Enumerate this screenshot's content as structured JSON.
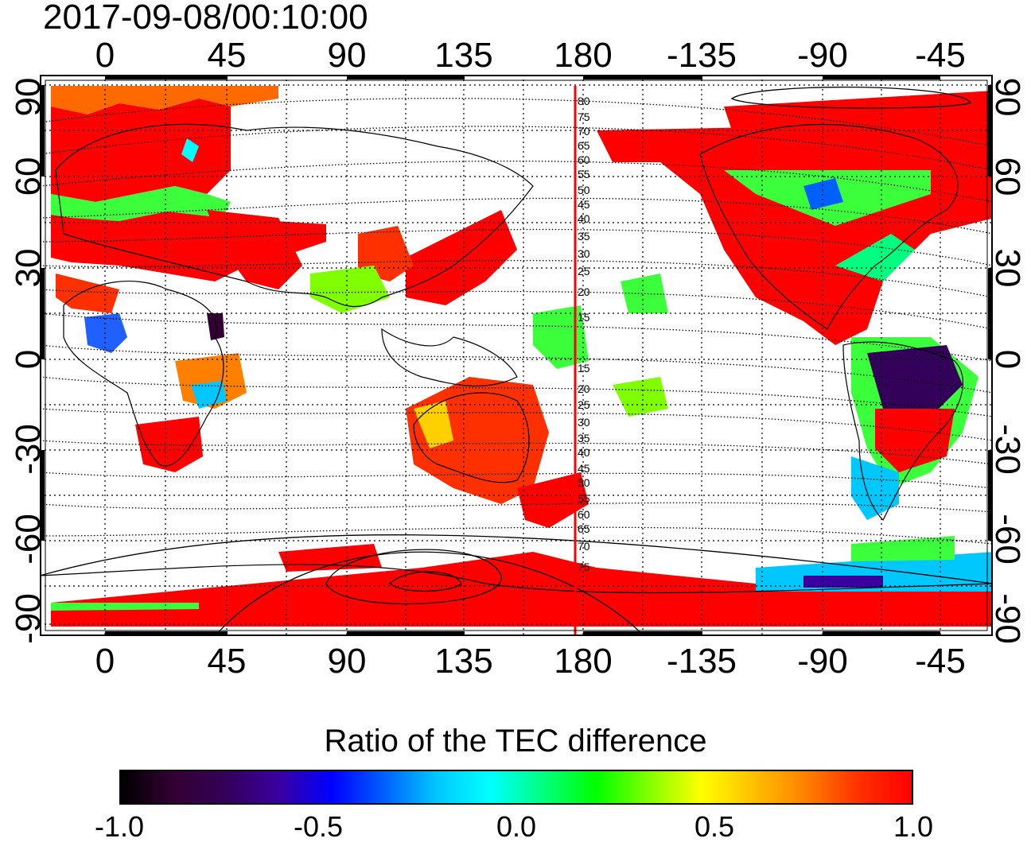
{
  "timestamp": "2017-09-08/00:10:00",
  "lon_ticks": [
    "0",
    "45",
    "90",
    "135",
    "180",
    "-135",
    "-90",
    "-45"
  ],
  "lat_ticks_left": [
    "90",
    "60",
    "30",
    "0",
    "-30",
    "-60",
    "-90"
  ],
  "lat_ticks_right": [
    "90",
    "60",
    "30",
    "0",
    "-30",
    "-60",
    "-90"
  ],
  "magnetic_lat_labels": [
    "80",
    "75",
    "70",
    "65",
    "60",
    "55",
    "50",
    "45",
    "40",
    "35",
    "30",
    "25",
    "20",
    "15",
    "15",
    "20",
    "25",
    "30",
    "35",
    "40",
    "45",
    "50",
    "55",
    "60",
    "65",
    "70",
    "75"
  ],
  "colorbar": {
    "title": "Ratio of the TEC difference",
    "tick_labels": [
      "-1.0",
      "-0.5",
      "0.0",
      "0.5",
      "1.0"
    ],
    "colors": [
      "#000000",
      "#330033",
      "#33005a",
      "#3a00a0",
      "#0000ff",
      "#0060ff",
      "#00c8ff",
      "#00ffff",
      "#00ff80",
      "#00ff00",
      "#80ff00",
      "#ffff00",
      "#ffc000",
      "#ff8000",
      "#ff3000",
      "#ff0000"
    ]
  },
  "map_data": {
    "projection": "equirectangular",
    "lon_range": [
      -24,
      336
    ],
    "lat_range": [
      -90,
      90
    ],
    "noon_meridian_color": "#ff0000",
    "noon_meridian_lon": 178
  }
}
